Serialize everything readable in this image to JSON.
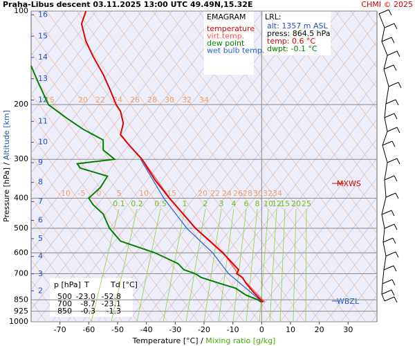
{
  "chart_data": {
    "type": "emagram",
    "title": "Praha-Libus  descent  03.11.2025 13:00 UTC  49.49N,15.32E",
    "credit": "CHMI © 2025",
    "x_label": "Temperature [°C]  /",
    "x_label2": "Mixing ratio [g/kg]",
    "y_label": "Pressure [hPa]  /",
    "y_label2": "Altitude [km]",
    "xlim": [
      -80,
      40
    ],
    "xticks": [
      -70,
      -60,
      -50,
      -40,
      -30,
      -20,
      -10,
      0,
      10,
      20,
      30
    ],
    "ylim": [
      1000,
      100
    ],
    "log_y": true,
    "yticks": [
      100,
      200,
      300,
      400,
      500,
      600,
      700,
      850,
      925,
      1000
    ],
    "altitude_ticks": [
      2,
      3,
      4,
      5,
      6,
      7,
      8,
      9,
      10,
      11,
      12,
      13,
      14,
      15,
      16
    ],
    "legend_title": "EMAGRAM",
    "series": [
      {
        "name": "temperature",
        "color": "#e00000",
        "pressure": [
          865,
          850,
          800,
          750,
          720,
          700,
          680,
          600,
          500,
          400,
          350,
          300,
          270,
          250,
          230,
          210,
          200,
          180,
          160,
          140,
          125,
          110,
          100
        ],
        "values": [
          0.6,
          -0.3,
          -3,
          -5.5,
          -6.7,
          -8.7,
          -8,
          -13.5,
          -23.0,
          -32,
          -37,
          -41.5,
          -46,
          -49,
          -48,
          -49,
          -50.5,
          -52.5,
          -55,
          -58.5,
          -61,
          -62.5,
          -61
        ]
      },
      {
        "name": "virt.temp.",
        "color": "#ff5050",
        "pressure": [
          865,
          700,
          600,
          500,
          400,
          300
        ],
        "values": [
          1.2,
          -8.3,
          -13.2,
          -22.8,
          -31.9,
          -41.4
        ]
      },
      {
        "name": "dew point",
        "color": "#008000",
        "pressure": [
          865,
          850,
          820,
          780,
          750,
          720,
          700,
          680,
          650,
          600,
          550,
          500,
          450,
          420,
          400,
          370,
          340,
          320,
          310,
          300,
          280,
          260,
          240,
          220,
          200,
          170,
          150
        ],
        "values": [
          -0.1,
          -1.3,
          -5.5,
          -9,
          -15,
          -21,
          -23.1,
          -27,
          -29,
          -37,
          -49,
          -52.8,
          -55,
          -58.5,
          -60,
          -56,
          -53.5,
          -63,
          -64,
          -51,
          -55,
          -55,
          -62,
          -68,
          -74,
          -77.5,
          -80
        ]
      },
      {
        "name": "wet bulb temp.",
        "color": "#2060d0",
        "pressure": [
          865,
          700,
          600,
          500,
          400,
          300
        ],
        "values": [
          0.3,
          -11.5,
          -17,
          -26,
          -34,
          -42
        ]
      }
    ],
    "lrl": {
      "title": "LRL:",
      "alt": "alt: 1357 m ASL",
      "press": "press: 864.5 hPa",
      "temp": "temp: 0.6 °C",
      "dwpt": "dwpt: -0.1 °C"
    },
    "table": {
      "header": [
        "p [hPa]",
        "T",
        "Td [°C]"
      ],
      "rows": [
        [
          "500",
          "-23.0",
          "-52.8"
        ],
        [
          "700",
          "-8.7",
          "-23.1"
        ],
        [
          "850",
          "-0.3",
          "-1.3"
        ]
      ]
    },
    "theta_labels_upper": [
      15,
      20,
      22,
      24,
      26,
      28,
      30,
      32,
      34
    ],
    "theta_labels_lower": [
      -10,
      -5,
      0,
      5,
      10,
      15,
      20,
      22,
      24,
      26,
      28,
      30,
      32,
      34
    ],
    "mixing_ratio_labels": [
      0.1,
      0.2,
      0.5,
      1,
      2,
      3,
      4,
      6,
      8,
      10,
      12,
      15,
      20,
      25
    ],
    "annotations": [
      "MXWS",
      "WBZL"
    ]
  }
}
